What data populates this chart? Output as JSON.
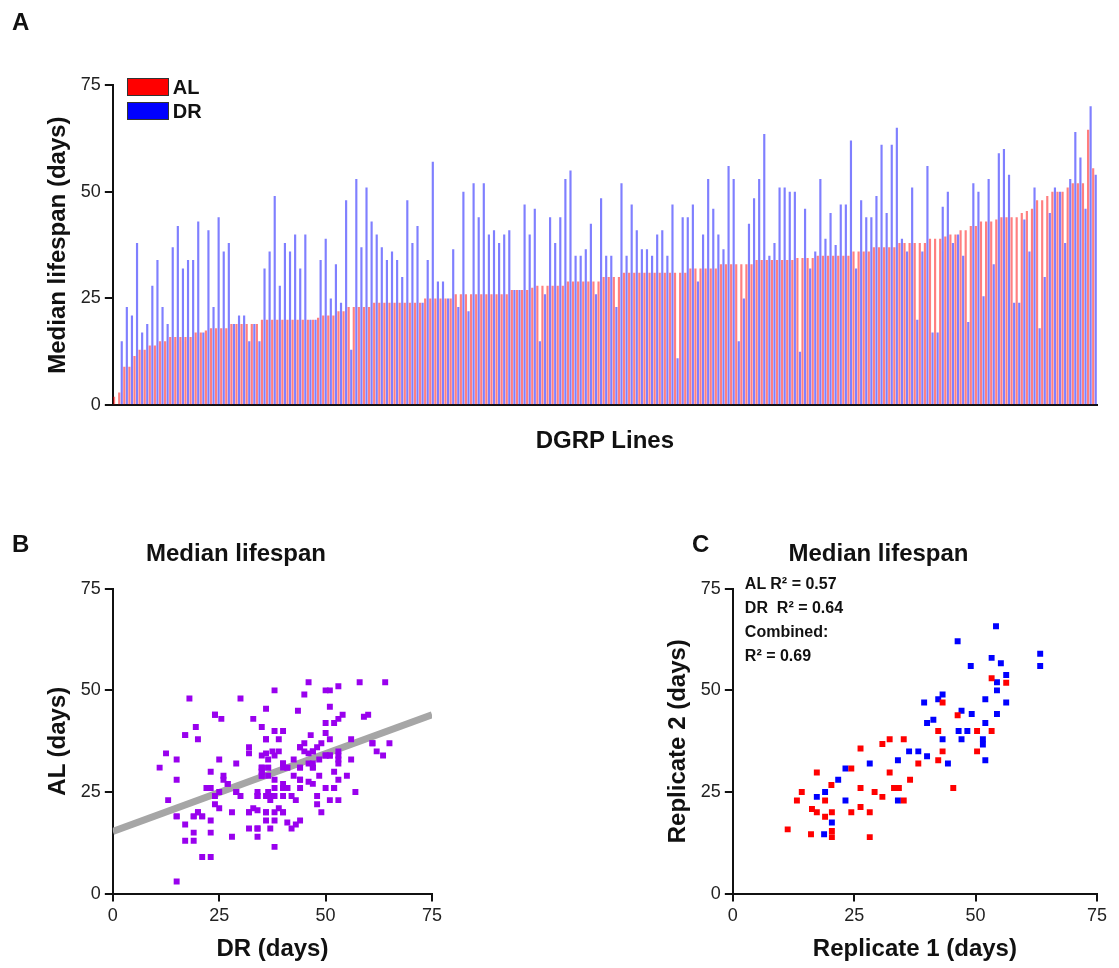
{
  "chart_data": [
    {
      "type": "bar",
      "ylabel": "Median lifespan (days)",
      "xlabel": "DGRP Lines",
      "annotations": [
        "A"
      ],
      "ylim": [
        0,
        75
      ],
      "yticks": [
        0,
        25,
        50,
        75
      ],
      "tick_labels": "y",
      "grid": false,
      "legend": "top left",
      "categories": [
        null,
        null,
        null,
        null,
        null,
        null,
        null,
        null,
        null,
        null,
        null,
        null,
        null,
        null,
        null,
        null,
        null,
        null,
        null,
        null,
        null,
        null,
        null,
        null,
        null,
        null,
        null,
        null,
        null,
        null,
        null,
        null,
        null,
        null,
        null,
        null,
        null,
        null,
        null,
        null,
        null,
        null,
        null,
        null,
        null,
        null,
        null,
        null,
        null,
        null,
        null,
        null,
        null,
        null,
        null,
        null,
        null,
        null,
        null,
        null,
        null,
        null,
        null,
        null,
        null,
        null,
        null,
        null,
        null,
        null,
        null,
        null,
        null,
        null,
        null,
        null,
        null,
        null,
        null,
        null,
        null,
        null,
        null,
        null,
        null,
        null,
        null,
        null,
        null,
        null,
        null,
        null,
        null,
        null,
        null,
        null,
        null,
        null,
        null,
        null,
        null,
        null,
        null,
        null,
        null,
        null,
        null,
        null,
        null,
        null,
        null,
        null,
        null,
        null,
        null,
        null,
        null,
        null,
        null,
        null,
        null,
        null,
        null,
        null,
        null,
        null,
        null,
        null,
        null,
        null,
        null,
        null,
        null,
        null,
        null,
        null,
        null,
        null,
        null,
        null,
        null,
        null,
        null,
        null,
        null,
        null,
        null,
        null,
        null,
        null,
        null,
        null,
        null,
        null,
        null,
        null,
        null,
        null,
        null,
        null,
        null,
        null,
        null,
        null,
        null,
        null,
        null,
        null,
        null,
        null,
        null,
        null,
        null,
        null,
        null,
        null,
        null,
        null,
        null,
        null,
        null,
        null,
        null,
        null,
        null,
        null,
        null,
        null,
        null,
        null,
        null,
        null,
        null
      ],
      "series": [
        {
          "name": "AL",
          "color": "#ff0000",
          "values": [
            2,
            3,
            9,
            9,
            11.5,
            13,
            13,
            14,
            14,
            15,
            15,
            16,
            16,
            16,
            16,
            16,
            17,
            17,
            17.5,
            18,
            18,
            18,
            18,
            19,
            19,
            19,
            19,
            19,
            19,
            20,
            20,
            20,
            20,
            20,
            20,
            20,
            20,
            20,
            20,
            20,
            20.5,
            21,
            21,
            21,
            22,
            22,
            23,
            23,
            23,
            23,
            23,
            24,
            24,
            24,
            24,
            24,
            24,
            24,
            24,
            24,
            24,
            25,
            25,
            25,
            25,
            25,
            25,
            26,
            26,
            26,
            26,
            26,
            26,
            26,
            26,
            26,
            26,
            26,
            27,
            27,
            27,
            27,
            27.5,
            28,
            28,
            28,
            28,
            28,
            28,
            29,
            29,
            29,
            29,
            29,
            29,
            29,
            30,
            30,
            30,
            30,
            31,
            31,
            31,
            31,
            31,
            31,
            31,
            31,
            31,
            31,
            31,
            31,
            31,
            32,
            32,
            32,
            32,
            32,
            32,
            33,
            33,
            33,
            33,
            33,
            33,
            33,
            34,
            34,
            34,
            34,
            34,
            34,
            34,
            34,
            34.5,
            34.5,
            34.5,
            34.5,
            35,
            35,
            35,
            35,
            35,
            35,
            35,
            36,
            36,
            36,
            36,
            37,
            37,
            37,
            37,
            37,
            38,
            38,
            38,
            38,
            38,
            38,
            39,
            39,
            39,
            39.5,
            40,
            40,
            41,
            41,
            42,
            42,
            43,
            43,
            43,
            43.5,
            44,
            44,
            44,
            44,
            45,
            45.5,
            46,
            48,
            48,
            49,
            50,
            50,
            50,
            51,
            52,
            52,
            52,
            64.5,
            55.5
          ]
        },
        {
          "name": "DR",
          "color": "#0000ff",
          "values": [
            null,
            15,
            23,
            21,
            38,
            17,
            19,
            28,
            34,
            23,
            19,
            37,
            42,
            32,
            34,
            34,
            43,
            17,
            41,
            23,
            44,
            36,
            38,
            19,
            21,
            21,
            15,
            19,
            15,
            32,
            36,
            49,
            28,
            38,
            36,
            40,
            32,
            40,
            20,
            20,
            34,
            39,
            25,
            33,
            24,
            48,
            13,
            53,
            37,
            51,
            43,
            40,
            37,
            34,
            36,
            34,
            30,
            48,
            38,
            42,
            24,
            34,
            57,
            29,
            29,
            25,
            36.5,
            23,
            50,
            22,
            52,
            44,
            52,
            40,
            41,
            38,
            40,
            41,
            27,
            27,
            47,
            40,
            46,
            15,
            26,
            44,
            38,
            44,
            53,
            55,
            35,
            35,
            36.5,
            42.5,
            26,
            48.5,
            35,
            35,
            23,
            52,
            35,
            47,
            41,
            36.5,
            36.5,
            35,
            40,
            41,
            35,
            47,
            11,
            44,
            44,
            47,
            29,
            40,
            53,
            46,
            40,
            36.5,
            56,
            53,
            15,
            25,
            42.5,
            48.5,
            53,
            63.5,
            35,
            38,
            51,
            51,
            50,
            50,
            12.5,
            46,
            32,
            36,
            53,
            39,
            45,
            37.5,
            47,
            47,
            62,
            32,
            48,
            44,
            44,
            49,
            61,
            45,
            61,
            65,
            39,
            36,
            51,
            20,
            36,
            56,
            17,
            17,
            46.5,
            50,
            38,
            40,
            35,
            19.5,
            52,
            50,
            25.5,
            53,
            33,
            59,
            60,
            54,
            24,
            24,
            43.5,
            36,
            51,
            18,
            30,
            45,
            51,
            50,
            38,
            53,
            64,
            58,
            46,
            70,
            54
          ]
        }
      ]
    },
    {
      "type": "scatter",
      "title": "Median lifespan",
      "xlabel": "DR (days)",
      "ylabel": "AL (days)",
      "annotations": [
        "B"
      ],
      "xlim": [
        0,
        75
      ],
      "xticks": [
        0,
        25,
        50,
        75
      ],
      "ylim": [
        0,
        75
      ],
      "yticks": [
        0,
        25,
        50,
        75
      ],
      "grid": false,
      "marker": "square",
      "series": [
        {
          "color": "#9900ee",
          "x": [
            15,
            23,
            21,
            38,
            17,
            19,
            28,
            34,
            23,
            19,
            37,
            42,
            32,
            34,
            34,
            43,
            17,
            41,
            23,
            44,
            36,
            38,
            19,
            21,
            21,
            15,
            19,
            15,
            32,
            36,
            49,
            28,
            38,
            36,
            40,
            32,
            40,
            20,
            20,
            34,
            39,
            25,
            33,
            24,
            48,
            13,
            53,
            37,
            51,
            43,
            40,
            37,
            34,
            36,
            34,
            30,
            48,
            38,
            42,
            24,
            34,
            57,
            29,
            29,
            25,
            36.5,
            23,
            50,
            22,
            52,
            44,
            52,
            40,
            41,
            38,
            40,
            41,
            27,
            27,
            47,
            40,
            46,
            15,
            26,
            44,
            38,
            44,
            53,
            55,
            35,
            35,
            36.5,
            42.5,
            26,
            48.5,
            35,
            35,
            23,
            52,
            35,
            47,
            41,
            36.5,
            36.5,
            35,
            40,
            41,
            35,
            47,
            11,
            44,
            44,
            47,
            29,
            40,
            53,
            46,
            40,
            36.5,
            56,
            53,
            15,
            25,
            42.5,
            48.5,
            53,
            63.5,
            35,
            38,
            51,
            51,
            50,
            50,
            12.5,
            46,
            32,
            36,
            53,
            39,
            45,
            37.5,
            47,
            47,
            62,
            32,
            48,
            44,
            44,
            49,
            61,
            45,
            61,
            65,
            39,
            36,
            51,
            20,
            36,
            56,
            17,
            17,
            46.5,
            50,
            38,
            40,
            35,
            19.5,
            52,
            50,
            25.5,
            53,
            33,
            59,
            60,
            54,
            24,
            24,
            43.5,
            36,
            51,
            18,
            30,
            45,
            51,
            50,
            38,
            53,
            64,
            58,
            46
          ],
          "values": [
            3,
            9,
            9,
            11.5,
            13,
            13,
            14,
            14,
            15,
            15,
            16,
            16,
            16,
            16,
            16,
            17,
            17,
            17.5,
            18,
            18,
            18,
            18,
            19,
            19,
            19,
            19,
            19,
            19,
            20,
            20,
            20,
            20,
            20,
            20,
            20,
            20,
            20,
            20,
            20,
            20.5,
            21,
            21,
            21,
            22,
            22,
            23,
            23,
            23,
            23,
            23,
            24,
            24,
            24,
            24,
            24,
            24,
            24,
            24,
            24,
            24,
            25,
            25,
            25,
            25,
            25,
            25,
            26,
            26,
            26,
            26,
            26,
            26,
            26,
            26,
            26,
            26,
            26,
            27,
            27,
            27,
            27,
            27.5,
            28,
            28,
            28,
            28,
            28,
            28,
            29,
            29,
            29,
            29,
            29,
            29,
            29,
            30,
            30,
            30,
            30,
            31,
            31,
            31,
            31,
            31,
            31,
            31,
            31,
            31,
            31,
            31,
            31,
            31,
            32,
            32,
            32,
            32,
            32,
            32,
            33,
            33,
            33,
            33,
            33,
            33,
            33,
            34,
            34,
            34,
            34,
            34,
            34,
            34,
            34,
            34.5,
            34.5,
            34.5,
            34.5,
            35,
            35,
            35,
            35,
            35,
            35,
            35,
            36,
            36,
            36,
            36,
            37,
            37,
            37,
            37,
            37,
            38,
            38,
            38,
            38,
            38,
            38,
            39,
            39,
            39,
            39.5,
            40,
            40,
            41,
            41,
            42,
            42,
            43,
            43,
            43,
            43.5,
            44,
            44,
            44,
            44,
            45,
            45.5,
            46,
            48,
            48,
            49,
            50,
            50,
            50,
            51,
            52,
            52,
            52
          ]
        },
        {
          "type": "line",
          "color": "#a6a6a6",
          "line_style": "solid",
          "marker": "none",
          "x": [
            0,
            75
          ],
          "values": [
            15.3,
            44
          ]
        }
      ]
    },
    {
      "type": "scatter",
      "title": "Median lifespan",
      "xlabel": "Replicate 1 (days)",
      "ylabel": "Replicate 2 (days)",
      "annotations": [
        "C",
        "AL R² = 0.57",
        "DR  R² = 0.64",
        "Combined:",
        "R² = 0.69"
      ],
      "xlim": [
        0,
        75
      ],
      "xticks": [
        0,
        25,
        50,
        75
      ],
      "ylim": [
        0,
        75
      ],
      "yticks": [
        0,
        25,
        50,
        75
      ],
      "grid": false,
      "marker": "square",
      "series": [
        {
          "color": "#ff0000",
          "x": [
            53.3,
            56.3,
            43.2,
            46.3,
            42.3,
            50.3,
            53.3,
            32.3,
            35.2,
            30.8,
            26.3,
            43.2,
            50.3,
            42.3,
            38.2,
            24.4,
            17.3,
            32.3,
            36.5,
            20.3,
            26.3,
            33.2,
            34.2,
            45.4,
            14.2,
            29.2,
            30.8,
            13.2,
            19,
            35.2,
            16.3,
            17.3,
            26.3,
            24.4,
            28.2,
            19,
            20.4,
            11.3,
            16.1,
            20.4,
            28.2,
            20.4
          ],
          "values": [
            53,
            51.9,
            47,
            43.9,
            40,
            40,
            40,
            38,
            38,
            36.8,
            35.7,
            35,
            35,
            32.8,
            32,
            30.8,
            29.8,
            29.8,
            28,
            26.7,
            26,
            26,
            26,
            26,
            25,
            25,
            23.8,
            22.9,
            22.9,
            22.9,
            20.8,
            20,
            21.3,
            20,
            20,
            18.9,
            20,
            15.8,
            14.6,
            13.9,
            13.9,
            15.4
          ]
        },
        {
          "color": "#0000ff",
          "x": [
            54.2,
            46.3,
            63.3,
            63.3,
            53.3,
            55.2,
            49,
            56.3,
            54.4,
            54.4,
            43.2,
            42.3,
            39.4,
            52,
            56.3,
            47.1,
            49.2,
            54.4,
            41.3,
            40,
            52,
            46.5,
            48.3,
            43.2,
            47.1,
            51.5,
            51.5,
            36.3,
            38.2,
            40,
            34,
            52,
            44.3,
            28.2,
            23.2,
            21.7,
            19,
            17.3,
            23.2,
            34,
            20.4,
            18.8
          ],
          "values": [
            65.8,
            62.1,
            59,
            56,
            58,
            56.7,
            56,
            53.8,
            52,
            50,
            49,
            47.8,
            47,
            47.8,
            47,
            45,
            44.2,
            44.2,
            42.8,
            42,
            42,
            40,
            40,
            38,
            38,
            38,
            36.7,
            35,
            35,
            33.8,
            32.8,
            32.8,
            32,
            32,
            30.8,
            28,
            25,
            23.8,
            22.9,
            22.9,
            17.5,
            14.6
          ]
        }
      ]
    }
  ]
}
